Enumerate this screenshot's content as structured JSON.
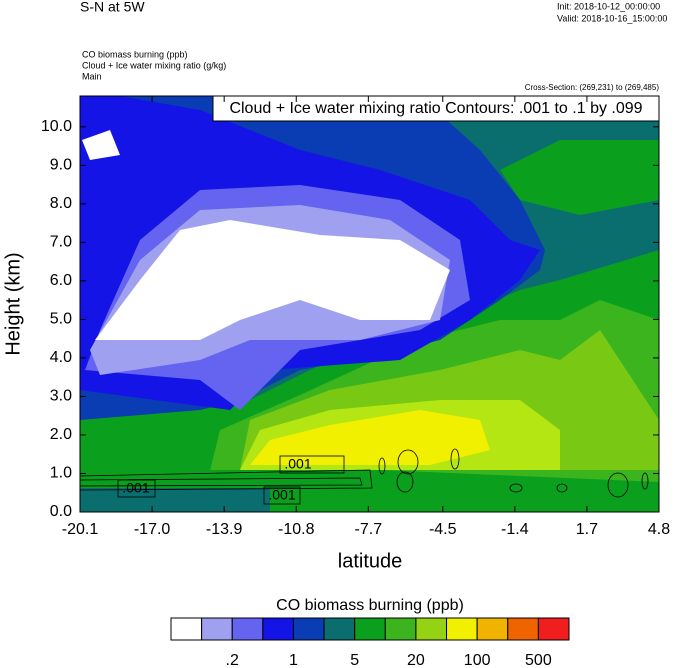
{
  "chart_data": {
    "type": "contour",
    "title": "S-N at 5W",
    "init": "Init: 2018-10-12_00:00:00",
    "valid": "Valid: 2018-10-16_15:00:00",
    "subtitles": [
      "CO biomass burning   (ppb)",
      "Cloud + Ice water mixing ratio   (g/kg)",
      "Main"
    ],
    "cross_section": "Cross-Section: (269,231) to (269,485)",
    "contour_note": "Cloud + Ice water mixing ratio Contours: .001 to .1 by .099",
    "contour_labels": [
      ".001",
      ".001",
      ".001"
    ],
    "x_label": "latitude",
    "y_label": "Height (km)",
    "xlim": [
      -20.1,
      4.8
    ],
    "xticks": [
      -20.1,
      {
        "value": -17,
        "label": "-17.0"
      },
      -13.9,
      -10.8,
      -7.7,
      -4.5,
      -1.4,
      1.7,
      4.8
    ],
    "ylim": [
      0,
      10.8
    ],
    "yticks": [
      {
        "value": 0,
        "label": "0.0"
      },
      {
        "value": 1,
        "label": "1.0"
      },
      {
        "value": 2,
        "label": "2.0"
      },
      {
        "value": 3,
        "label": "3.0"
      },
      {
        "value": 4,
        "label": "4.0"
      },
      {
        "value": 5,
        "label": "5.0"
      },
      {
        "value": 6,
        "label": "6.0"
      },
      {
        "value": 7,
        "label": "7.0"
      },
      {
        "value": 8,
        "label": "8.0"
      },
      {
        "value": 9,
        "label": "9.0"
      },
      {
        "value": 10,
        "label": "10.0"
      }
    ],
    "colorbar": {
      "title": "CO biomass burning  (ppb)",
      "colors": [
        "#ffffff",
        "#a0a0f0",
        "#6464f0",
        "#1414e6",
        "#0a3cb4",
        "#0a6e6e",
        "#0aa01e",
        "#3cb41e",
        "#96d214",
        "#f0f000",
        "#f0b400",
        "#f06400",
        "#f01e1e"
      ],
      "ticks": [
        {
          "value": 0.2,
          "label": ".2"
        },
        1,
        5,
        20,
        100,
        500
      ]
    }
  }
}
